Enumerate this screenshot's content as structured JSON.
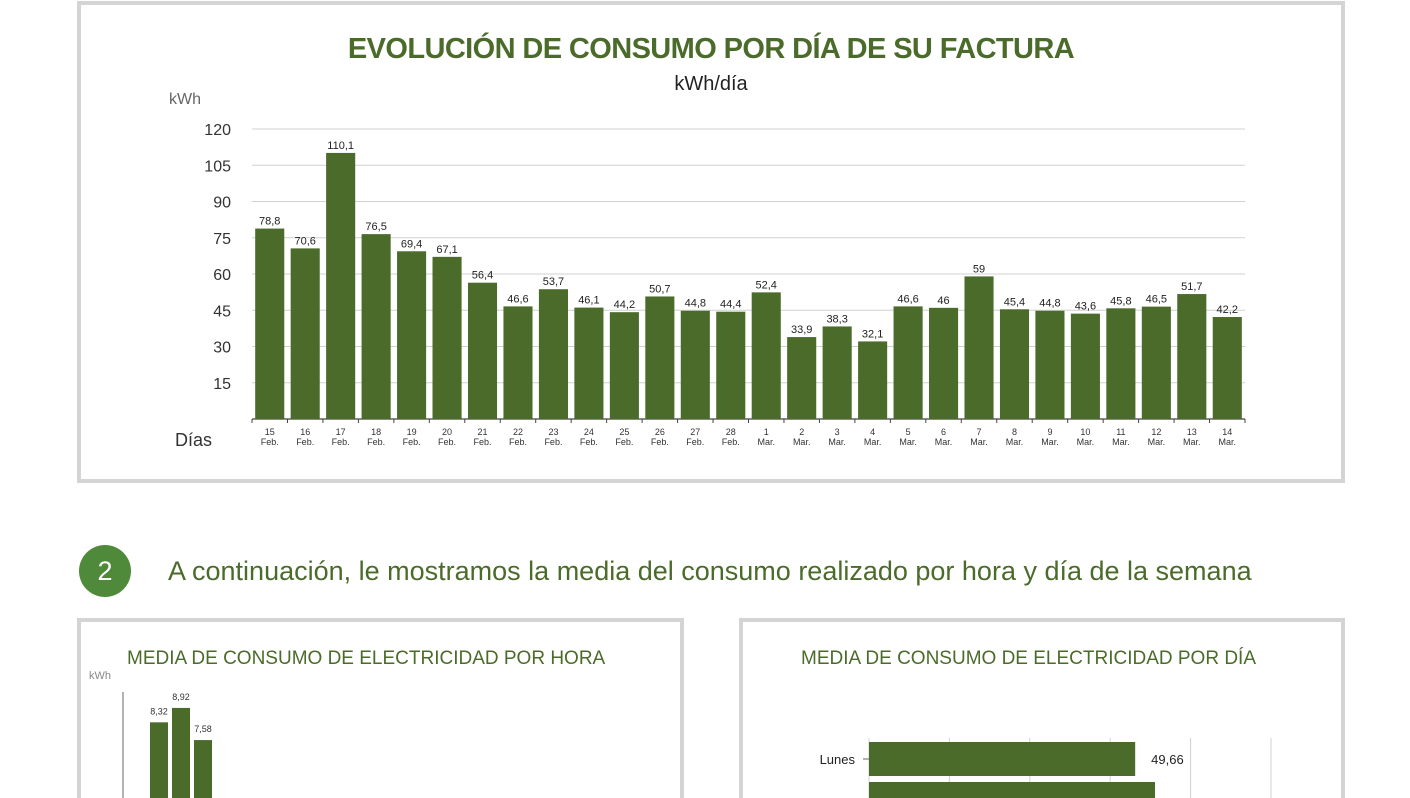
{
  "main_chart": {
    "title": "EVOLUCIÓN DE CONSUMO POR DÍA DE SU FACTURA",
    "subtitle": "kWh/día",
    "ylabel": "kWh",
    "xlabel": "Días"
  },
  "section": {
    "number": "2",
    "text": "A continuación, le mostramos la media del consumo realizado por hora y día de la semana"
  },
  "hour_chart": {
    "title": "MEDIA DE CONSUMO DE ELECTRICIDAD POR HORA",
    "ylabel": "kWh"
  },
  "day_chart": {
    "title": "MEDIA DE CONSUMO DE ELECTRICIDAD POR DÍA"
  },
  "colors": {
    "bar": "#4b6b2a",
    "title": "#4b6b2a",
    "circle": "#4f8a3a",
    "grid": "#d0d0d0"
  },
  "chart_data": [
    {
      "type": "bar",
      "title": "EVOLUCIÓN DE CONSUMO POR DÍA DE SU FACTURA",
      "subtitle": "kWh/día",
      "ylabel": "kWh",
      "xlabel": "Días",
      "ylim": [
        0,
        120
      ],
      "yticks": [
        15,
        30,
        45,
        60,
        75,
        90,
        105,
        120
      ],
      "grid": true,
      "categories": [
        [
          "15",
          "Feb."
        ],
        [
          "16",
          "Feb."
        ],
        [
          "17",
          "Feb."
        ],
        [
          "18",
          "Feb."
        ],
        [
          "19",
          "Feb."
        ],
        [
          "20",
          "Feb."
        ],
        [
          "21",
          "Feb."
        ],
        [
          "22",
          "Feb."
        ],
        [
          "23",
          "Feb."
        ],
        [
          "24",
          "Feb."
        ],
        [
          "25",
          "Feb."
        ],
        [
          "26",
          "Feb."
        ],
        [
          "27",
          "Feb."
        ],
        [
          "28",
          "Feb."
        ],
        [
          "1",
          "Mar."
        ],
        [
          "2",
          "Mar."
        ],
        [
          "3",
          "Mar."
        ],
        [
          "4",
          "Mar."
        ],
        [
          "5",
          "Mar."
        ],
        [
          "6",
          "Mar."
        ],
        [
          "7",
          "Mar."
        ],
        [
          "8",
          "Mar."
        ],
        [
          "9",
          "Mar."
        ],
        [
          "10",
          "Mar."
        ],
        [
          "11",
          "Mar."
        ],
        [
          "12",
          "Mar."
        ],
        [
          "13",
          "Mar."
        ],
        [
          "14",
          "Mar."
        ]
      ],
      "values": [
        78.8,
        70.6,
        110.1,
        76.5,
        69.4,
        67.1,
        56.4,
        46.6,
        53.7,
        46.1,
        44.2,
        50.7,
        44.8,
        44.4,
        52.4,
        33.9,
        38.3,
        32.1,
        46.6,
        46,
        59,
        45.4,
        44.8,
        43.6,
        45.8,
        46.5,
        51.7,
        42.2
      ],
      "value_labels": [
        "78,8",
        "70,6",
        "110,1",
        "76,5",
        "69,4",
        "67,1",
        "56,4",
        "46,6",
        "53,7",
        "46,1",
        "44,2",
        "50,7",
        "44,8",
        "44,4",
        "52,4",
        "33,9",
        "38,3",
        "32,1",
        "46,6",
        "46",
        "59",
        "45,4",
        "44,8",
        "43,6",
        "45,8",
        "46,5",
        "51,7",
        "42,2"
      ]
    },
    {
      "type": "bar",
      "title": "MEDIA DE CONSUMO DE ELECTRICIDAD POR HORA",
      "ylabel": "kWh",
      "values": [
        8.32,
        8.92,
        7.58
      ],
      "value_labels": [
        "8,32",
        "8,92",
        "7,58"
      ],
      "ylim": [
        0,
        10
      ]
    },
    {
      "type": "bar",
      "orientation": "horizontal",
      "title": "MEDIA DE CONSUMO DE ELECTRICIDAD POR DÍA",
      "categories": [
        "Lunes"
      ],
      "values": [
        49.66
      ],
      "value_labels": [
        "49,66"
      ],
      "xlim": [
        0,
        75
      ]
    }
  ]
}
